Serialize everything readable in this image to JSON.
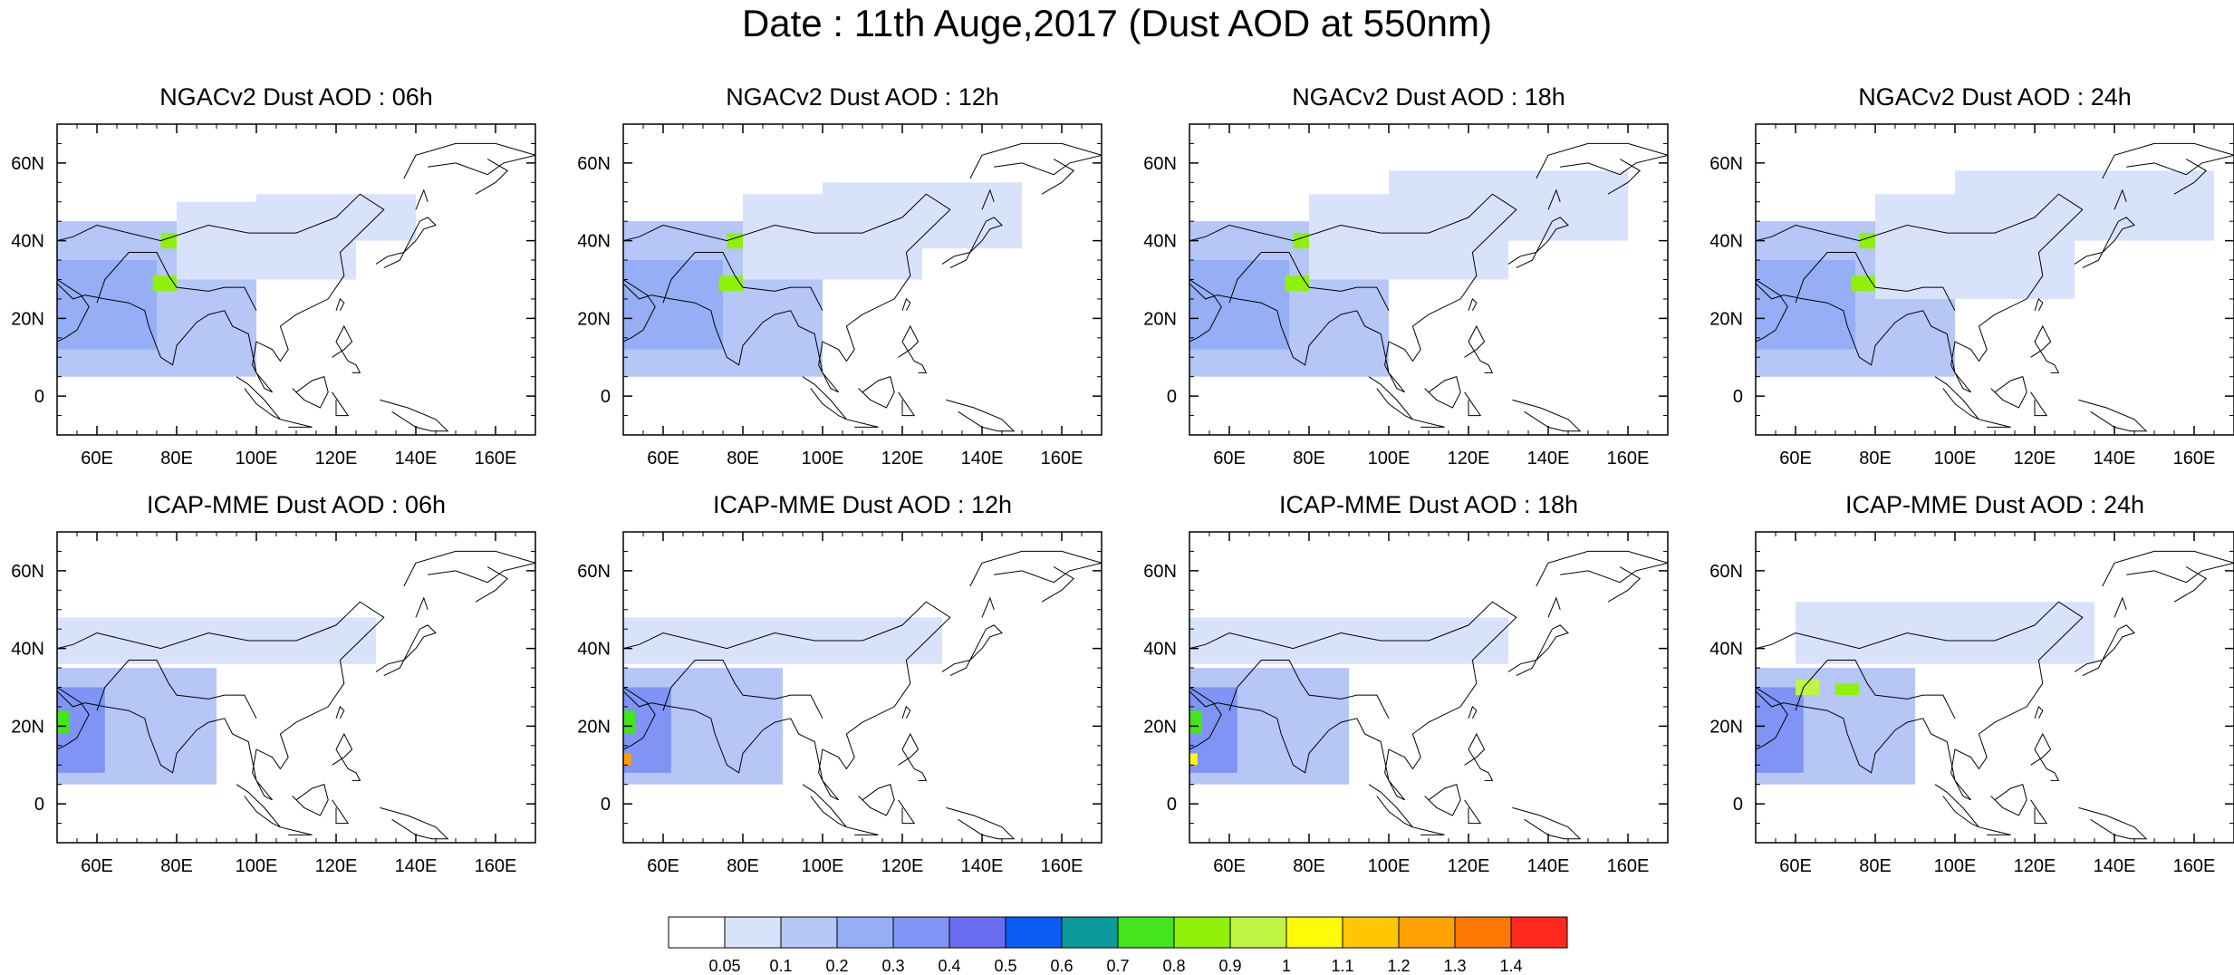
{
  "title": "Date : 11th Auge,2017 (Dust AOD at 550nm)",
  "panels": [
    {
      "title": "NGACv2 Dust AOD : 06h",
      "model": "NGACv2",
      "hour": "06h"
    },
    {
      "title": "NGACv2 Dust AOD : 12h",
      "model": "NGACv2",
      "hour": "12h"
    },
    {
      "title": "NGACv2 Dust AOD : 18h",
      "model": "NGACv2",
      "hour": "18h"
    },
    {
      "title": "NGACv2 Dust AOD : 24h",
      "model": "NGACv2",
      "hour": "24h"
    },
    {
      "title": "ICAP-MME Dust AOD : 06h",
      "model": "ICAP-MME",
      "hour": "06h"
    },
    {
      "title": "ICAP-MME Dust AOD : 12h",
      "model": "ICAP-MME",
      "hour": "12h"
    },
    {
      "title": "ICAP-MME Dust AOD : 18h",
      "model": "ICAP-MME",
      "hour": "18h"
    },
    {
      "title": "ICAP-MME Dust AOD : 24h",
      "model": "ICAP-MME",
      "hour": "24h"
    }
  ],
  "axes": {
    "lon_range": [
      50,
      170
    ],
    "lat_range": [
      -10,
      70
    ],
    "lon_ticks": [
      60,
      80,
      100,
      120,
      140,
      160
    ],
    "lon_tick_labels": [
      "60E",
      "80E",
      "100E",
      "120E",
      "140E",
      "160E"
    ],
    "lat_ticks": [
      0,
      20,
      40,
      60
    ],
    "lat_tick_labels": [
      "0",
      "20N",
      "40N",
      "60N"
    ]
  },
  "colorbar": {
    "labels": [
      "0.05",
      "0.1",
      "0.2",
      "0.3",
      "0.4",
      "0.5",
      "0.6",
      "0.7",
      "0.8",
      "0.9",
      "1",
      "1.1",
      "1.2",
      "1.3",
      "1.4"
    ],
    "colors": [
      "#ffffff",
      "#d9e2fb",
      "#b5c6f7",
      "#95aef5",
      "#7f94f4",
      "#6a6df0",
      "#0a5cf5",
      "#0c9a9a",
      "#44e51c",
      "#8ff10a",
      "#bff542",
      "#fffb07",
      "#ffc604",
      "#ffa003",
      "#ff7902",
      "#ff2a1b"
    ]
  },
  "chart_data": [
    {
      "type": "heatmap",
      "title": "NGACv2 Dust AOD : 06h",
      "variable": "Dust AOD at 550nm",
      "xlim": [
        50,
        170
      ],
      "ylim": [
        -10,
        70
      ],
      "regions": [
        {
          "lon": [
            50,
            100
          ],
          "lat": [
            5,
            45
          ],
          "level": 2
        },
        {
          "lon": [
            80,
            125
          ],
          "lat": [
            30,
            50
          ],
          "level": 1
        },
        {
          "lon": [
            100,
            140
          ],
          "lat": [
            40,
            52
          ],
          "level": 1
        },
        {
          "lon": [
            50,
            75
          ],
          "lat": [
            12,
            35
          ],
          "level": 3
        },
        {
          "lon": [
            76,
            80
          ],
          "lat": [
            38,
            42
          ],
          "level": 9
        },
        {
          "lon": [
            74,
            80
          ],
          "lat": [
            27,
            31
          ],
          "level": 9
        }
      ]
    },
    {
      "type": "heatmap",
      "title": "NGACv2 Dust AOD : 12h",
      "variable": "Dust AOD at 550nm",
      "xlim": [
        50,
        170
      ],
      "ylim": [
        -10,
        70
      ],
      "regions": [
        {
          "lon": [
            50,
            100
          ],
          "lat": [
            5,
            45
          ],
          "level": 2
        },
        {
          "lon": [
            80,
            125
          ],
          "lat": [
            30,
            52
          ],
          "level": 1
        },
        {
          "lon": [
            100,
            150
          ],
          "lat": [
            38,
            55
          ],
          "level": 1
        },
        {
          "lon": [
            50,
            75
          ],
          "lat": [
            12,
            35
          ],
          "level": 3
        },
        {
          "lon": [
            76,
            80
          ],
          "lat": [
            38,
            42
          ],
          "level": 9
        },
        {
          "lon": [
            74,
            80
          ],
          "lat": [
            27,
            31
          ],
          "level": 9
        }
      ]
    },
    {
      "type": "heatmap",
      "title": "NGACv2 Dust AOD : 18h",
      "variable": "Dust AOD at 550nm",
      "xlim": [
        50,
        170
      ],
      "ylim": [
        -10,
        70
      ],
      "regions": [
        {
          "lon": [
            50,
            100
          ],
          "lat": [
            5,
            45
          ],
          "level": 2
        },
        {
          "lon": [
            80,
            130
          ],
          "lat": [
            30,
            52
          ],
          "level": 1
        },
        {
          "lon": [
            100,
            160
          ],
          "lat": [
            40,
            58
          ],
          "level": 1
        },
        {
          "lon": [
            50,
            75
          ],
          "lat": [
            12,
            35
          ],
          "level": 3
        },
        {
          "lon": [
            76,
            80
          ],
          "lat": [
            38,
            42
          ],
          "level": 9
        },
        {
          "lon": [
            74,
            80
          ],
          "lat": [
            27,
            31
          ],
          "level": 9
        }
      ]
    },
    {
      "type": "heatmap",
      "title": "NGACv2 Dust AOD : 24h",
      "variable": "Dust AOD at 550nm",
      "xlim": [
        50,
        170
      ],
      "ylim": [
        -10,
        70
      ],
      "regions": [
        {
          "lon": [
            50,
            100
          ],
          "lat": [
            5,
            45
          ],
          "level": 2
        },
        {
          "lon": [
            80,
            130
          ],
          "lat": [
            25,
            52
          ],
          "level": 1
        },
        {
          "lon": [
            100,
            165
          ],
          "lat": [
            40,
            58
          ],
          "level": 1
        },
        {
          "lon": [
            50,
            75
          ],
          "lat": [
            12,
            35
          ],
          "level": 3
        },
        {
          "lon": [
            76,
            80
          ],
          "lat": [
            38,
            42
          ],
          "level": 9
        },
        {
          "lon": [
            74,
            80
          ],
          "lat": [
            27,
            31
          ],
          "level": 9
        }
      ]
    },
    {
      "type": "heatmap",
      "title": "ICAP-MME Dust AOD : 06h",
      "variable": "Dust AOD at 550nm",
      "xlim": [
        50,
        170
      ],
      "ylim": [
        -10,
        70
      ],
      "regions": [
        {
          "lon": [
            50,
            90
          ],
          "lat": [
            5,
            35
          ],
          "level": 2
        },
        {
          "lon": [
            50,
            130
          ],
          "lat": [
            36,
            48
          ],
          "level": 1
        },
        {
          "lon": [
            50,
            62
          ],
          "lat": [
            8,
            30
          ],
          "level": 4
        },
        {
          "lon": [
            50,
            53
          ],
          "lat": [
            18,
            24
          ],
          "level": 8
        }
      ]
    },
    {
      "type": "heatmap",
      "title": "ICAP-MME Dust AOD : 12h",
      "variable": "Dust AOD at 550nm",
      "xlim": [
        50,
        170
      ],
      "ylim": [
        -10,
        70
      ],
      "regions": [
        {
          "lon": [
            50,
            90
          ],
          "lat": [
            5,
            35
          ],
          "level": 2
        },
        {
          "lon": [
            50,
            130
          ],
          "lat": [
            36,
            48
          ],
          "level": 1
        },
        {
          "lon": [
            50,
            62
          ],
          "lat": [
            8,
            30
          ],
          "level": 4
        },
        {
          "lon": [
            50,
            53
          ],
          "lat": [
            18,
            24
          ],
          "level": 8
        },
        {
          "lon": [
            50,
            52
          ],
          "lat": [
            10,
            13
          ],
          "level": 13
        }
      ]
    },
    {
      "type": "heatmap",
      "title": "ICAP-MME Dust AOD : 18h",
      "variable": "Dust AOD at 550nm",
      "xlim": [
        50,
        170
      ],
      "ylim": [
        -10,
        70
      ],
      "regions": [
        {
          "lon": [
            50,
            90
          ],
          "lat": [
            5,
            35
          ],
          "level": 2
        },
        {
          "lon": [
            50,
            130
          ],
          "lat": [
            36,
            48
          ],
          "level": 1
        },
        {
          "lon": [
            50,
            62
          ],
          "lat": [
            8,
            30
          ],
          "level": 4
        },
        {
          "lon": [
            50,
            53
          ],
          "lat": [
            18,
            24
          ],
          "level": 8
        },
        {
          "lon": [
            50,
            52
          ],
          "lat": [
            10,
            13
          ],
          "level": 11
        }
      ]
    },
    {
      "type": "heatmap",
      "title": "ICAP-MME Dust AOD : 24h",
      "variable": "Dust AOD at 550nm",
      "xlim": [
        50,
        170
      ],
      "ylim": [
        -10,
        70
      ],
      "regions": [
        {
          "lon": [
            50,
            90
          ],
          "lat": [
            5,
            35
          ],
          "level": 2
        },
        {
          "lon": [
            60,
            135
          ],
          "lat": [
            36,
            52
          ],
          "level": 1
        },
        {
          "lon": [
            50,
            62
          ],
          "lat": [
            8,
            30
          ],
          "level": 4
        },
        {
          "lon": [
            60,
            66
          ],
          "lat": [
            28,
            32
          ],
          "level": 10
        },
        {
          "lon": [
            70,
            76
          ],
          "lat": [
            28,
            31
          ],
          "level": 9
        }
      ]
    }
  ]
}
